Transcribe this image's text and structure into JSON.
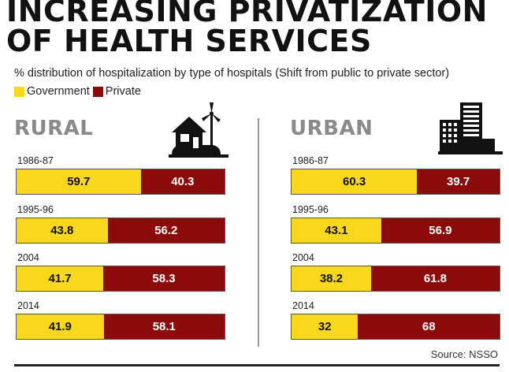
{
  "header": {
    "title_line1": "INCREASING PRIVATIZATION",
    "title_line2": "OF HEALTH SERVICES",
    "subtitle": "% distribution of hospitalization by type of hospitals (Shift from public to private sector)"
  },
  "legend": {
    "government": "Government",
    "private": "Private"
  },
  "colors": {
    "government": "#f9d71c",
    "private": "#8b0a0a"
  },
  "icons": {
    "rural": "house-windmill-icon",
    "urban": "city-buildings-icon"
  },
  "chart_data": [
    {
      "type": "bar",
      "orientation": "horizontal-stacked-100",
      "title": "RURAL",
      "categories": [
        "1986-87",
        "1995-96",
        "2004",
        "2014"
      ],
      "series": [
        {
          "name": "Government",
          "values": [
            59.7,
            43.8,
            41.7,
            41.9
          ]
        },
        {
          "name": "Private",
          "values": [
            40.3,
            56.2,
            58.3,
            58.1
          ]
        }
      ],
      "labels": {
        "Government": [
          "59.7",
          "43.8",
          "41.7",
          "41.9"
        ],
        "Private": [
          "40.3",
          "56.2",
          "58.3",
          "58.1"
        ]
      },
      "xlim": [
        0,
        100
      ]
    },
    {
      "type": "bar",
      "orientation": "horizontal-stacked-100",
      "title": "URBAN",
      "categories": [
        "1986-87",
        "1995-96",
        "2004",
        "2014"
      ],
      "series": [
        {
          "name": "Government",
          "values": [
            60.3,
            43.1,
            38.2,
            32
          ]
        },
        {
          "name": "Private",
          "values": [
            39.7,
            56.9,
            61.8,
            68
          ]
        }
      ],
      "labels": {
        "Government": [
          "60.3",
          "43.1",
          "38.2",
          "32"
        ],
        "Private": [
          "39.7",
          "56.9",
          "61.8",
          "68"
        ]
      },
      "xlim": [
        0,
        100
      ]
    }
  ],
  "footer": {
    "source": "Source: NSSO"
  }
}
